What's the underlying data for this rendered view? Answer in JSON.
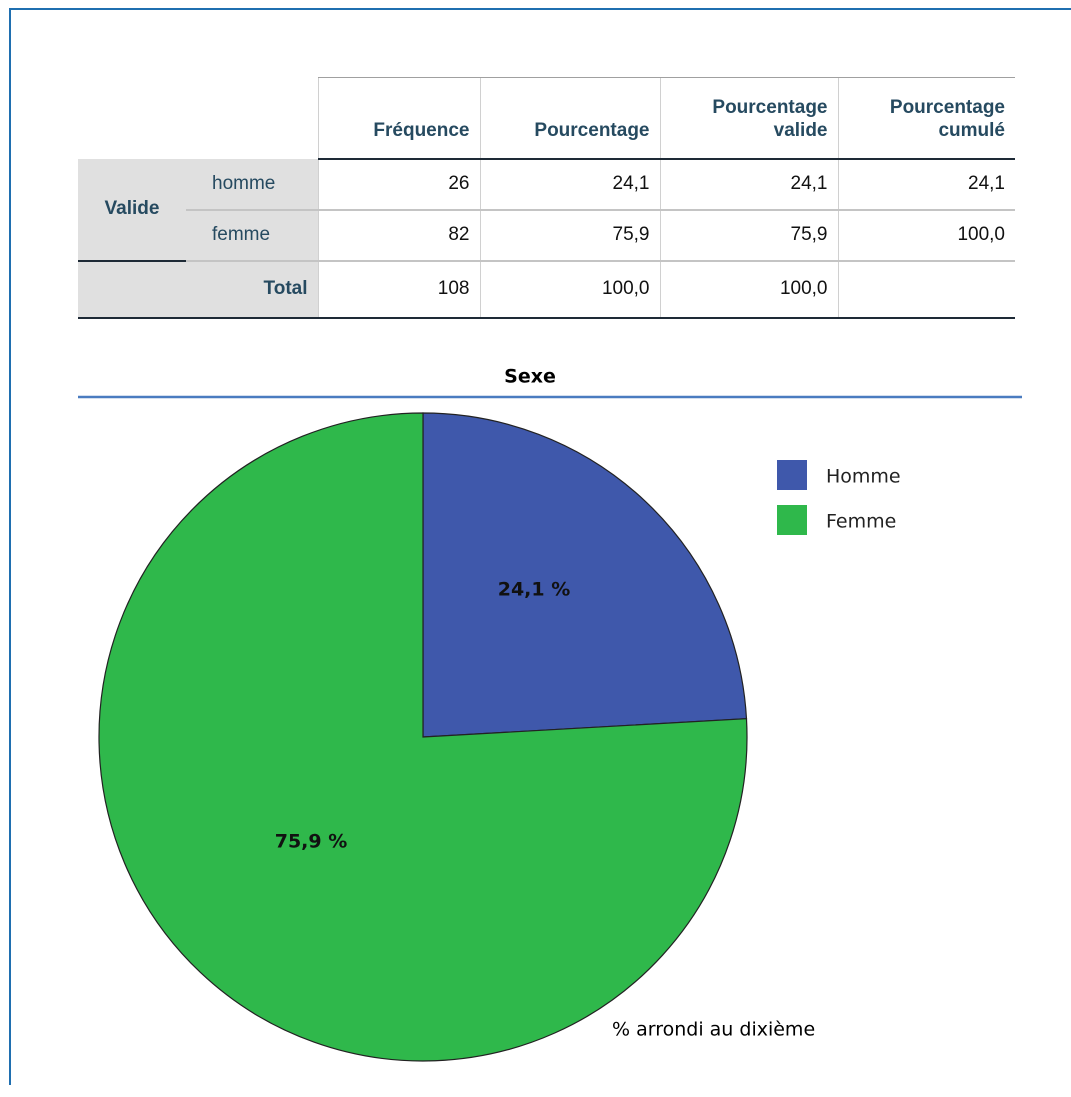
{
  "table": {
    "group": "Valide",
    "columns": [
      "Fréquence",
      "Pourcentage",
      "Pourcentage valide",
      "Pourcentage cumulé"
    ],
    "rows": [
      {
        "label": "homme",
        "cells": [
          "26",
          "24,1",
          "24,1",
          "24,1"
        ]
      },
      {
        "label": "femme",
        "cells": [
          "82",
          "75,9",
          "75,9",
          "100,0"
        ]
      },
      {
        "label": "Total",
        "cells": [
          "108",
          "100,0",
          "100,0"
        ]
      }
    ]
  },
  "chart_data": {
    "type": "pie",
    "title": "Sexe",
    "categories": [
      "Homme",
      "Femme"
    ],
    "values": [
      24.1,
      75.9
    ],
    "value_labels": [
      "24,1 %",
      "75,9 %"
    ],
    "colors": [
      "#3f58ab",
      "#2fb84b"
    ],
    "note": "% arrondi au dixième"
  }
}
